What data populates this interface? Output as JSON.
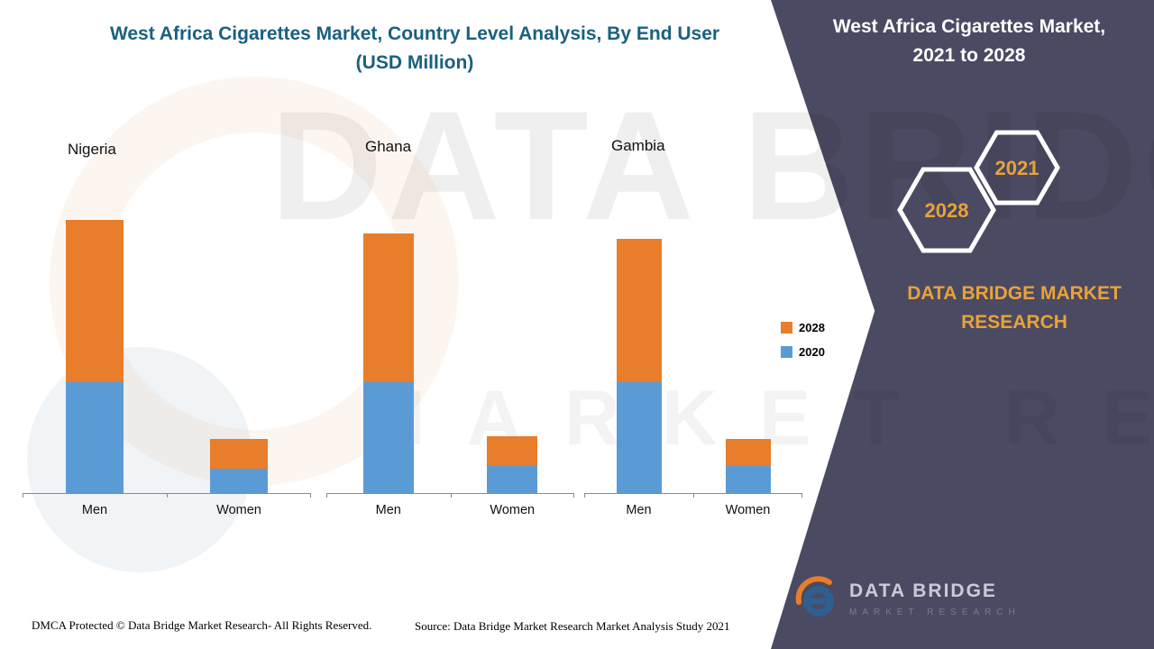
{
  "page": {
    "title_line1": "West Africa Cigarettes Market, Country Level Analysis, By End User",
    "title_line2": "(USD Million)"
  },
  "side_panel": {
    "title_line1": "West Africa Cigarettes Market,",
    "title_line2": "2021 to 2028",
    "hex_left": "2028",
    "hex_right": "2021",
    "brand_line1": "DATA BRIDGE MARKET",
    "brand_line2": "RESEARCH",
    "panel_color": "#4b4a63",
    "accent_color": "#e8a23b"
  },
  "watermark": {
    "line1": "DATA BRIDGE",
    "line2": "MARKET RESEARCH"
  },
  "footer": {
    "dmca": "DMCA Protected © Data Bridge Market Research- All Rights Reserved.",
    "source": "Source: Data Bridge Market Research Market Analysis Study 2021",
    "logo_text": "DATA BRIDGE",
    "logo_subtext": "MARKET RESEARCH"
  },
  "chart_data": {
    "type": "bar",
    "subtype": "stacked",
    "title": "West Africa Cigarettes Market, Country Level Analysis, By End User (USD Million)",
    "ylabel": "USD Million",
    "note": "y-axis unlabeled in source; values are relative estimates read from bar heights",
    "categories": [
      "Men",
      "Women"
    ],
    "series_names": [
      "2020",
      "2028"
    ],
    "series_colors": {
      "2020": "#5b9bd5",
      "2028": "#e87d2b"
    },
    "legend": [
      {
        "label": "2028",
        "color": "#e87d2b"
      },
      {
        "label": "2020",
        "color": "#5b9bd5"
      }
    ],
    "legend_position": "right",
    "axis": {
      "y_visible": false,
      "x_baseline": true
    },
    "groups": [
      {
        "country": "Nigeria",
        "series": [
          {
            "name": "2020",
            "values": [
              41,
              9
            ]
          },
          {
            "name": "2028",
            "values": [
              60,
              11
            ]
          }
        ]
      },
      {
        "country": "Ghana",
        "series": [
          {
            "name": "2020",
            "values": [
              41,
              10
            ]
          },
          {
            "name": "2028",
            "values": [
              55,
              11
            ]
          }
        ]
      },
      {
        "country": "Gambia",
        "series": [
          {
            "name": "2020",
            "values": [
              41,
              10
            ]
          },
          {
            "name": "2028",
            "values": [
              53,
              10
            ]
          }
        ]
      }
    ]
  }
}
